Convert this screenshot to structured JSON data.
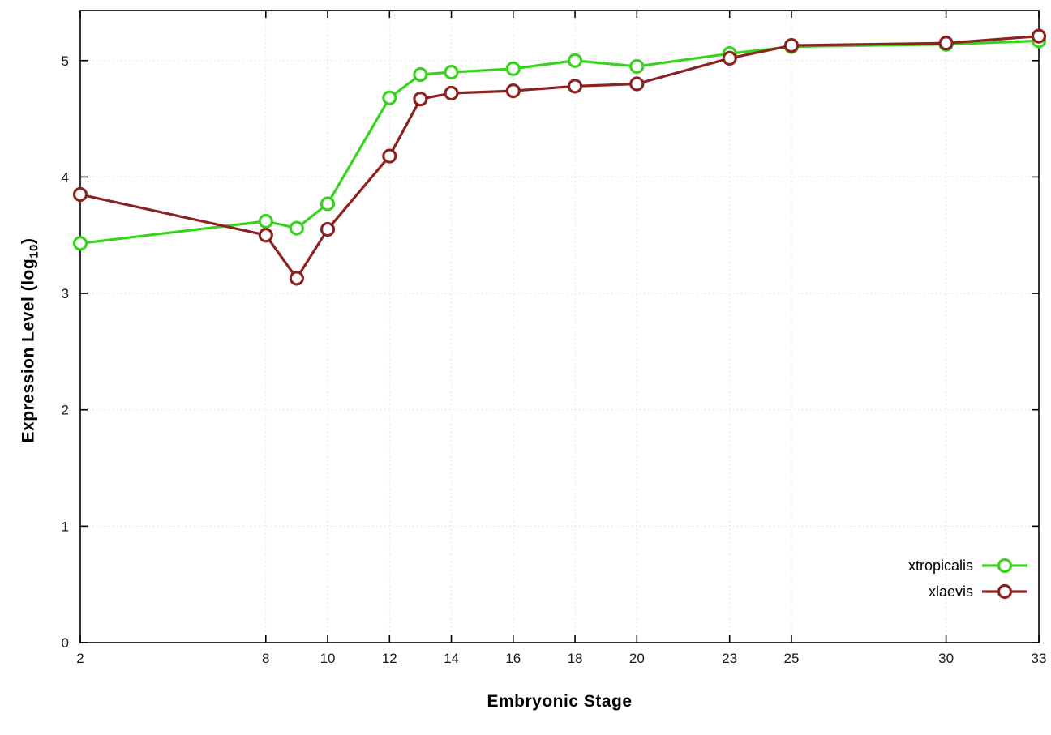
{
  "page": {
    "background": "#ffffff"
  },
  "labels": {
    "xlabel": "Embryonic Stage",
    "ylabel_prefix": "Expression Level (log",
    "ylabel_sub": "10",
    "ylabel_suffix": ")"
  },
  "chart_data": {
    "type": "line",
    "title": "",
    "xlabel": "Embryonic Stage",
    "ylabel": "Expression Level (log10)",
    "x": [
      2,
      8,
      9,
      10,
      12,
      13,
      14,
      16,
      18,
      20,
      23,
      25,
      30,
      33
    ],
    "series": [
      {
        "name": "xtropicalis",
        "color": "#38d31e",
        "marker": "open-circle",
        "values": [
          3.43,
          3.62,
          3.56,
          3.77,
          4.68,
          4.88,
          4.9,
          4.93,
          5.0,
          4.95,
          5.06,
          5.12,
          5.14,
          5.17
        ]
      },
      {
        "name": "xlaevis",
        "color": "#8b2323",
        "marker": "open-circle",
        "values": [
          3.85,
          3.5,
          3.13,
          3.55,
          4.18,
          4.67,
          4.72,
          4.74,
          4.78,
          4.8,
          5.02,
          5.13,
          5.15,
          5.21
        ]
      }
    ],
    "xticks": [
      2,
      8,
      10,
      12,
      14,
      16,
      18,
      20,
      23,
      25,
      30,
      33
    ],
    "yticks": [
      0,
      1,
      2,
      3,
      4,
      5
    ],
    "xlim": [
      2,
      33
    ],
    "ylim": [
      0,
      5.43
    ],
    "grid": true,
    "grid_style": "dotted",
    "grid_color": "#dcdcdc",
    "border_color": "#000000",
    "tick_label_color": "#1a1a1a",
    "legend_position": "bottom-right"
  }
}
